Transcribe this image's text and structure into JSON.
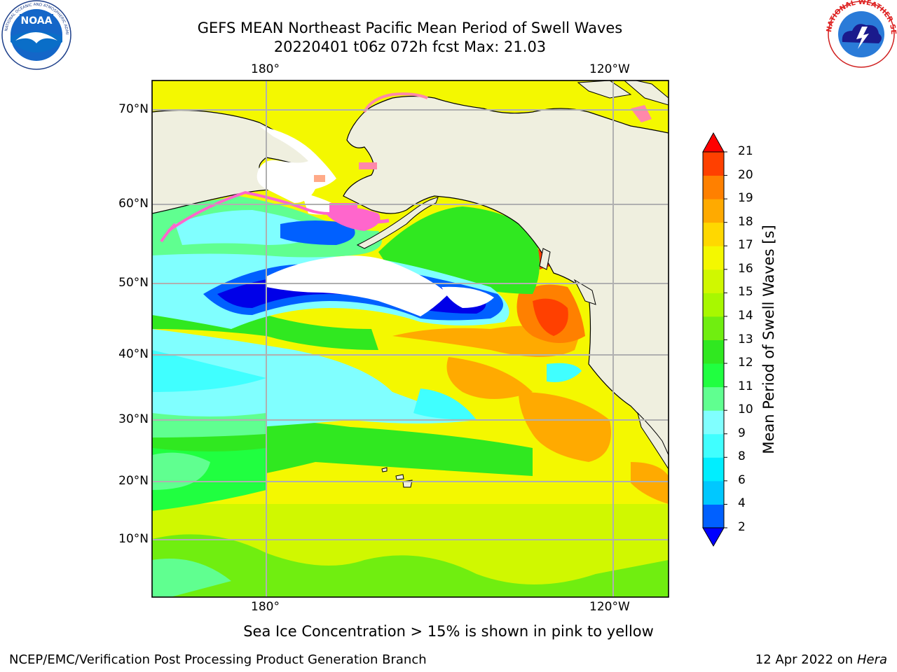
{
  "header": {
    "title_line1": "GEFS MEAN Northeast Pacific Mean Period of Swell Waves",
    "title_line2": "20220401 t06z 072h fcst   Max: 21.03"
  },
  "logos": {
    "left": "NOAA",
    "left_ring_text": "NATIONAL OCEANIC AND ATMOSPHERIC ADMINISTRATION · U.S. DEPARTMENT OF COMMERCE",
    "right_ring_text": "NATIONAL WEATHER SERVICE"
  },
  "map": {
    "lon_ticks": [
      "180°",
      "120°W"
    ],
    "lat_ticks": [
      "70°N",
      "60°N",
      "50°N",
      "40°N",
      "30°N",
      "20°N",
      "10°N"
    ],
    "ocean_color": "#f5f500",
    "land_color": "#efefdf",
    "grid_color": "#b0b0b0"
  },
  "colorbar": {
    "label": "Mean Period of Swell Waves [s]",
    "ticks": [
      "2",
      "4",
      "6",
      "8",
      "9",
      "10",
      "11",
      "12",
      "13",
      "14",
      "15",
      "16",
      "17",
      "18",
      "19",
      "20",
      "21"
    ],
    "colors": [
      "#0060ff",
      "#00c8ff",
      "#00eeff",
      "#40ffff",
      "#80ffff",
      "#60ff90",
      "#20ff40",
      "#30e820",
      "#70ee10",
      "#a8f800",
      "#d0f800",
      "#f4f800",
      "#ffd800",
      "#ffaa00",
      "#ff8000",
      "#ff4000",
      "#ff2000"
    ],
    "under_color": "#0000ff",
    "over_color": "#ff0000"
  },
  "note": "Sea Ice Concentration > 15% is shown in pink to yellow",
  "footer": {
    "left": "NCEP/EMC/Verification Post Processing Product Generation Branch",
    "right_prefix": "12 Apr 2022 on ",
    "right_italic": "Hera"
  }
}
